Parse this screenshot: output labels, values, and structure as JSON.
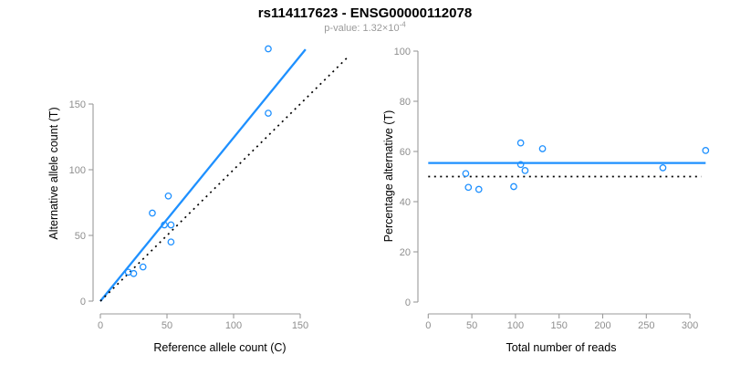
{
  "title": "rs114117623 - ENSG00000112078",
  "subtitle": {
    "text": "p-value: 1.32×10",
    "exponent": "-4"
  },
  "colors": {
    "accent_blue": "#1e90ff",
    "axis_gray": "#9a9a9a",
    "tick_label_gray": "#8e8e8e",
    "dotted_black": "#000000",
    "background": "#ffffff"
  },
  "chart_data": [
    {
      "type": "scatter",
      "name": "allele-counts-scatter",
      "xlabel": "Reference allele count (C)",
      "ylabel": "Alternative allele count (T)",
      "xticks": [
        0,
        50,
        100,
        150
      ],
      "yticks": [
        0,
        50,
        100,
        150
      ],
      "xlim": [
        0,
        158
      ],
      "ylim": [
        0,
        196
      ],
      "grid": false,
      "legend": "none",
      "points": [
        [
          21,
          22
        ],
        [
          25,
          21
        ],
        [
          32,
          26
        ],
        [
          39,
          67
        ],
        [
          48,
          58
        ],
        [
          51,
          80
        ],
        [
          53,
          45
        ],
        [
          53,
          58
        ],
        [
          126,
          143
        ],
        [
          126,
          192
        ]
      ],
      "lines": [
        {
          "name": "fit-line",
          "style": "solid",
          "color": "#1e90ff",
          "x1": 0,
          "y1": 0,
          "x2": 154,
          "y2": 191.6
        },
        {
          "name": "identity-line",
          "style": "dotted",
          "color": "#000000",
          "x1": 0,
          "y1": 0,
          "x2": 185,
          "y2": 185
        }
      ]
    },
    {
      "type": "scatter",
      "name": "percentage-vs-coverage-scatter",
      "xlabel": "Total number of reads",
      "ylabel": "Percentage alternative (T)",
      "xticks": [
        0,
        50,
        100,
        150,
        200,
        250,
        300
      ],
      "yticks": [
        0,
        20,
        40,
        60,
        80,
        100
      ],
      "xlim": [
        0,
        318
      ],
      "ylim": [
        0,
        100
      ],
      "grid": false,
      "legend": "none",
      "points": [
        [
          43,
          51.2
        ],
        [
          46,
          45.7
        ],
        [
          58,
          44.9
        ],
        [
          98,
          46.0
        ],
        [
          106,
          63.4
        ],
        [
          106,
          54.8
        ],
        [
          111,
          52.4
        ],
        [
          131,
          61.1
        ],
        [
          269,
          53.5
        ],
        [
          318,
          60.4
        ]
      ],
      "lines": [
        {
          "name": "mean-percentage-line",
          "style": "solid",
          "color": "#1e90ff",
          "x1": 0,
          "y1": 55.4,
          "x2": 318,
          "y2": 55.4
        },
        {
          "name": "expected-50-line",
          "style": "dotted",
          "color": "#000000",
          "x1": 0,
          "y1": 50,
          "x2": 313,
          "y2": 50
        }
      ]
    }
  ]
}
